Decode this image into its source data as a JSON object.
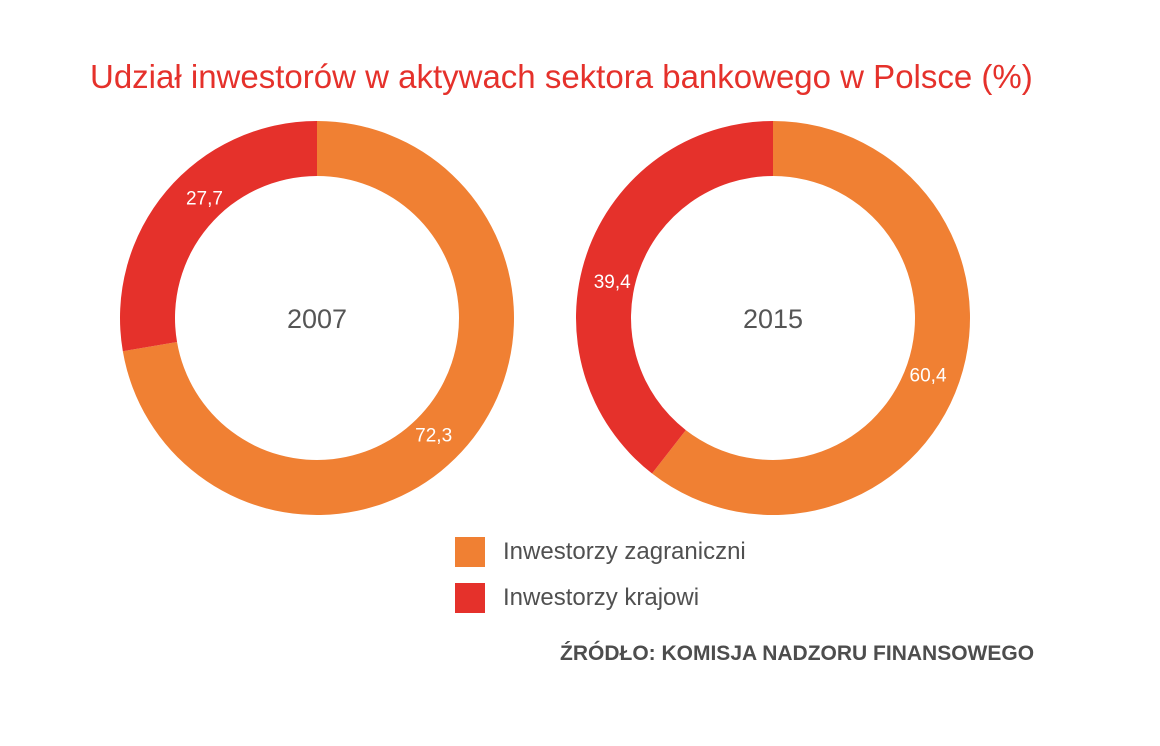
{
  "title": "Udział inwestorów w aktywach sektora bankowego w Polsce (%)",
  "source": "ŹRÓDŁO: KOMISJA NADZORU FINANSOWEGO",
  "colors": {
    "foreign": "#f08033",
    "domestic": "#e5312b",
    "title": "#e5312b",
    "center_label": "#555555"
  },
  "legend": [
    {
      "label": "Inwestorzy zagraniczni",
      "color": "#f08033"
    },
    {
      "label": "Inwestorzy krajowi",
      "color": "#e5312b"
    }
  ],
  "chart_data": [
    {
      "type": "pie",
      "center_label": "2007",
      "slices": [
        {
          "category": "Inwestorzy zagraniczni",
          "value": 72.3,
          "label": "72,3",
          "color": "#f08033"
        },
        {
          "category": "Inwestorzy krajowi",
          "value": 27.7,
          "label": "27,7",
          "color": "#e5312b"
        }
      ]
    },
    {
      "type": "pie",
      "center_label": "2015",
      "slices": [
        {
          "category": "Inwestorzy zagraniczni",
          "value": 60.4,
          "label": "60,4",
          "color": "#f08033"
        },
        {
          "category": "Inwestorzy krajowi",
          "value": 39.4,
          "label": "39,4",
          "color": "#e5312b"
        }
      ]
    }
  ]
}
